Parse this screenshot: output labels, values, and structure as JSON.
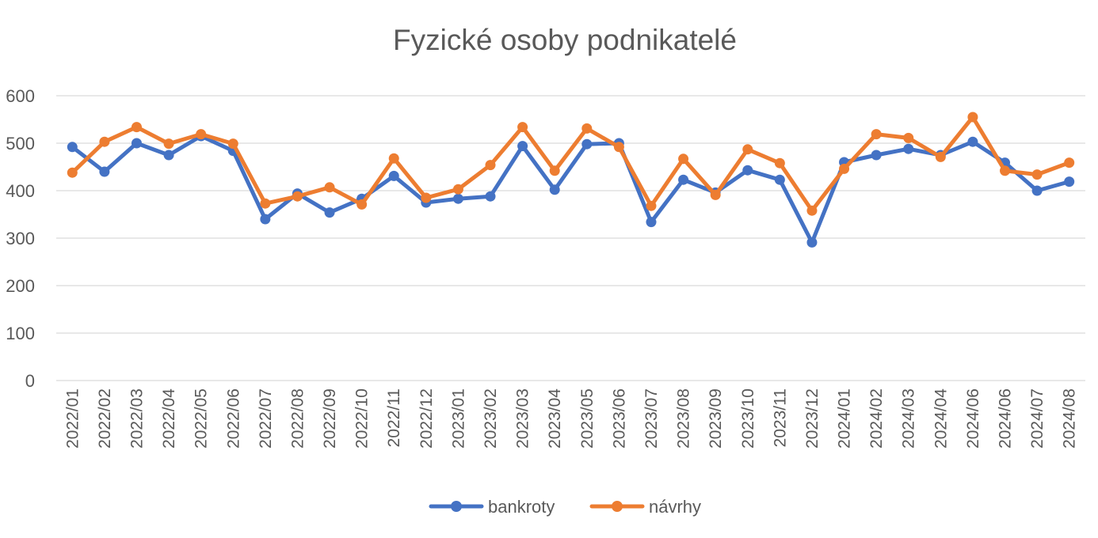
{
  "chart_data": {
    "type": "line",
    "title": "Fyzické osoby podnikatelé",
    "xlabel": "",
    "ylabel": "",
    "ylim": [
      0,
      600
    ],
    "yticks": [
      0,
      100,
      200,
      300,
      400,
      500,
      600
    ],
    "grid": true,
    "legend_position": "bottom",
    "categories": [
      "2022/01",
      "2022/02",
      "2022/03",
      "2022/04",
      "2022/05",
      "2022/06",
      "2022/07",
      "2022/08",
      "2022/09",
      "2022/10",
      "2022/11",
      "2022/12",
      "2023/01",
      "2023/02",
      "2023/03",
      "2023/04",
      "2023/05",
      "2023/06",
      "2023/07",
      "2023/08",
      "2023/09",
      "2023/10",
      "2023/11",
      "2023/12",
      "2024/01",
      "2024/02",
      "2024/03",
      "2024/04",
      "2024/06",
      "2024/06",
      "2024/07",
      "2024/08"
    ],
    "series": [
      {
        "name": "bankroty",
        "color": "#4472c4",
        "values": [
          492,
          440,
          500,
          475,
          515,
          484,
          340,
          394,
          354,
          383,
          431,
          375,
          383,
          388,
          494,
          402,
          498,
          500,
          334,
          423,
          396,
          443,
          423,
          291,
          460,
          475,
          488,
          475,
          503,
          459,
          400,
          419
        ]
      },
      {
        "name": "návrhy",
        "color": "#ed7d31",
        "values": [
          438,
          503,
          534,
          499,
          519,
          499,
          373,
          388,
          407,
          371,
          468,
          385,
          403,
          454,
          534,
          442,
          531,
          492,
          368,
          467,
          391,
          487,
          458,
          358,
          446,
          519,
          511,
          471,
          555,
          442,
          434,
          459
        ]
      }
    ]
  }
}
